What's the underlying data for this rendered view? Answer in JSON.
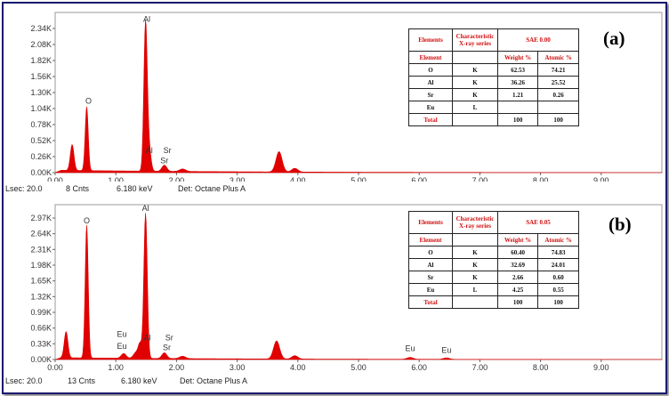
{
  "chart_data": [
    {
      "type": "area",
      "panel_label": "(a)",
      "xlabel": "",
      "ylabel": "",
      "xlim": [
        0,
        10
      ],
      "ylim": [
        0,
        2.6
      ],
      "x_ticks": [
        "0.00",
        "1.00",
        "2.00",
        "3.00",
        "4.00",
        "5.00",
        "6.00",
        "7.00",
        "8.00",
        "9.00"
      ],
      "y_ticks": [
        {
          "v": 0.0,
          "label": "0.00K"
        },
        {
          "v": 0.26,
          "label": "0.26K"
        },
        {
          "v": 0.52,
          "label": "0.52K"
        },
        {
          "v": 0.78,
          "label": "0.78K"
        },
        {
          "v": 1.04,
          "label": "1.04K"
        },
        {
          "v": 1.3,
          "label": "1.30K"
        },
        {
          "v": 1.56,
          "label": "1.56K"
        },
        {
          "v": 1.82,
          "label": "1.82K"
        },
        {
          "v": 2.08,
          "label": "2.08K"
        },
        {
          "v": 2.34,
          "label": "2.34K"
        }
      ],
      "series": [
        {
          "color": "#e00000",
          "peaks": [
            {
              "x": 0.28,
              "h": 0.42,
              "w": 0.03
            },
            {
              "x": 0.52,
              "h": 1.04,
              "w": 0.025
            },
            {
              "x": 1.49,
              "h": 2.42,
              "w": 0.028
            },
            {
              "x": 1.55,
              "h": 0.35,
              "w": 0.03
            },
            {
              "x": 1.8,
              "h": 0.1,
              "w": 0.04
            },
            {
              "x": 2.1,
              "h": 0.04,
              "w": 0.05
            },
            {
              "x": 3.69,
              "h": 0.33,
              "w": 0.05
            },
            {
              "x": 3.95,
              "h": 0.06,
              "w": 0.05
            }
          ],
          "baseline": 0.04
        }
      ],
      "annotations": [
        {
          "text": "Al",
          "x": 1.51,
          "y": 2.45
        },
        {
          "text": "O",
          "x": 0.55,
          "y": 1.12
        },
        {
          "text": "Al",
          "x": 1.55,
          "y": 0.32
        },
        {
          "text": "Sr",
          "x": 1.85,
          "y": 0.32
        },
        {
          "text": "Sr",
          "x": 1.8,
          "y": 0.15
        }
      ],
      "status": {
        "lsec": "Lsec: 20.0",
        "cnts": "8 Cnts",
        "kev": "6.180 keV",
        "det": "Det: Octane Plus A"
      },
      "table": {
        "header": [
          "Elements",
          "Characteristic X-ray series",
          "SAE 0.00"
        ],
        "subheader": [
          "Element",
          "",
          "Weight %",
          "Atomic %"
        ],
        "rows": [
          [
            "O",
            "K",
            "62.53",
            "74.21"
          ],
          [
            "Al",
            "K",
            "36.26",
            "25.52"
          ],
          [
            "Sr",
            "K",
            "1.21",
            "0.26"
          ],
          [
            "Eu",
            "L",
            "",
            ""
          ],
          [
            "Total",
            "",
            "100",
            "100"
          ]
        ]
      }
    },
    {
      "type": "area",
      "panel_label": "(b)",
      "xlabel": "",
      "ylabel": "",
      "xlim": [
        0,
        10
      ],
      "ylim": [
        0,
        3.25
      ],
      "x_ticks": [
        "0.00",
        "1.00",
        "2.00",
        "3.00",
        "4.00",
        "5.00",
        "6.00",
        "7.00",
        "8.00",
        "9.00"
      ],
      "y_ticks": [
        {
          "v": 0.0,
          "label": "0.00K"
        },
        {
          "v": 0.33,
          "label": "0.33K"
        },
        {
          "v": 0.66,
          "label": "0.66K"
        },
        {
          "v": 0.99,
          "label": "0.99K"
        },
        {
          "v": 1.32,
          "label": "1.32K"
        },
        {
          "v": 1.65,
          "label": "1.65K"
        },
        {
          "v": 1.98,
          "label": "1.98K"
        },
        {
          "v": 2.31,
          "label": "2.31K"
        },
        {
          "v": 2.64,
          "label": "2.64K"
        },
        {
          "v": 2.97,
          "label": "2.97K"
        }
      ],
      "series": [
        {
          "color": "#e00000",
          "peaks": [
            {
              "x": 0.18,
              "h": 0.55,
              "w": 0.03
            },
            {
              "x": 0.52,
              "h": 2.8,
              "w": 0.025
            },
            {
              "x": 1.13,
              "h": 0.1,
              "w": 0.04
            },
            {
              "x": 1.33,
              "h": 0.12,
              "w": 0.04
            },
            {
              "x": 1.4,
              "h": 0.3,
              "w": 0.03
            },
            {
              "x": 1.49,
              "h": 3.05,
              "w": 0.028
            },
            {
              "x": 1.8,
              "h": 0.12,
              "w": 0.04
            },
            {
              "x": 2.1,
              "h": 0.05,
              "w": 0.05
            },
            {
              "x": 3.65,
              "h": 0.38,
              "w": 0.05
            },
            {
              "x": 3.95,
              "h": 0.07,
              "w": 0.05
            },
            {
              "x": 5.85,
              "h": 0.04,
              "w": 0.05
            },
            {
              "x": 6.45,
              "h": 0.03,
              "w": 0.05
            }
          ],
          "baseline": 0.04
        }
      ],
      "annotations": [
        {
          "text": "Al",
          "x": 1.49,
          "y": 3.12
        },
        {
          "text": "O",
          "x": 0.52,
          "y": 2.86
        },
        {
          "text": "Eu",
          "x": 1.1,
          "y": 0.48
        },
        {
          "text": "Eu",
          "x": 1.1,
          "y": 0.22
        },
        {
          "text": "Al",
          "x": 1.52,
          "y": 0.4
        },
        {
          "text": "Sr",
          "x": 1.88,
          "y": 0.4
        },
        {
          "text": "Sr",
          "x": 1.84,
          "y": 0.2
        },
        {
          "text": "Eu",
          "x": 5.85,
          "y": 0.18
        },
        {
          "text": "Eu",
          "x": 6.45,
          "y": 0.14
        }
      ],
      "status": {
        "lsec": "Lsec: 20.0",
        "cnts": "13 Cnts",
        "kev": "6.180 keV",
        "det": "Det: Octane Plus A"
      },
      "table": {
        "header": [
          "Elements",
          "Characteristic X-ray series",
          "SAE 0.05"
        ],
        "subheader": [
          "Element",
          "",
          "Weight %",
          "Atomic %"
        ],
        "rows": [
          [
            "O",
            "K",
            "60.40",
            "74.83"
          ],
          [
            "Al",
            "K",
            "32.69",
            "24.01"
          ],
          [
            "Sr",
            "K",
            "2.66",
            "0.60"
          ],
          [
            "Eu",
            "L",
            "4.25",
            "0.55"
          ],
          [
            "Total",
            "",
            "100",
            "100"
          ]
        ]
      }
    }
  ]
}
